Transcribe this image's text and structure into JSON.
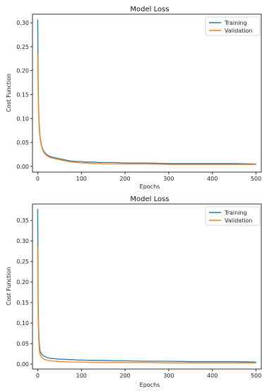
{
  "colors": {
    "training": "#1f77b4",
    "validation": "#ff7f0e",
    "axis": "#000000"
  },
  "chart_data": [
    {
      "type": "line",
      "title": "Model Loss",
      "xlabel": "Epochs",
      "ylabel": "Cost Function",
      "xlim": [
        -12,
        512
      ],
      "ylim": [
        -0.012,
        0.318
      ],
      "xticks": [
        0,
        100,
        200,
        300,
        400,
        500
      ],
      "yticks": [
        0.0,
        0.05,
        0.1,
        0.15,
        0.2,
        0.25,
        0.3
      ],
      "ytick_labels": [
        "0.00",
        "0.05",
        "0.10",
        "0.15",
        "0.20",
        "0.25",
        "0.30"
      ],
      "legend": "top-right",
      "series": [
        {
          "name": "Training",
          "x": [
            0,
            1,
            2,
            3,
            4,
            5,
            6,
            8,
            10,
            12,
            15,
            20,
            25,
            30,
            40,
            50,
            60,
            70,
            80,
            90,
            100,
            110,
            120,
            130,
            140,
            150,
            175,
            200,
            250,
            300,
            350,
            400,
            450,
            500
          ],
          "values": [
            0.307,
            0.18,
            0.12,
            0.095,
            0.078,
            0.066,
            0.057,
            0.047,
            0.04,
            0.035,
            0.03,
            0.025,
            0.022,
            0.02,
            0.018,
            0.016,
            0.014,
            0.012,
            0.011,
            0.01,
            0.01,
            0.009,
            0.009,
            0.009,
            0.008,
            0.008,
            0.008,
            0.007,
            0.007,
            0.006,
            0.006,
            0.006,
            0.006,
            0.005
          ]
        },
        {
          "name": "Validation",
          "x": [
            0,
            1,
            2,
            3,
            4,
            5,
            6,
            8,
            10,
            12,
            15,
            20,
            25,
            30,
            40,
            50,
            60,
            70,
            80,
            90,
            100,
            110,
            120,
            130,
            140,
            150,
            175,
            200,
            250,
            300,
            350,
            400,
            450,
            500
          ],
          "values": [
            0.234,
            0.16,
            0.11,
            0.088,
            0.073,
            0.062,
            0.054,
            0.045,
            0.038,
            0.033,
            0.028,
            0.023,
            0.02,
            0.018,
            0.016,
            0.014,
            0.012,
            0.01,
            0.009,
            0.008,
            0.007,
            0.007,
            0.006,
            0.006,
            0.006,
            0.005,
            0.005,
            0.005,
            0.005,
            0.004,
            0.004,
            0.004,
            0.004,
            0.004
          ]
        }
      ]
    },
    {
      "type": "line",
      "title": "Model Loss",
      "xlabel": "Epochs",
      "ylabel": "Cost Function",
      "xlim": [
        -12,
        512
      ],
      "ylim": [
        -0.012,
        0.39
      ],
      "xticks": [
        0,
        100,
        200,
        300,
        400,
        500
      ],
      "yticks": [
        0.0,
        0.05,
        0.1,
        0.15,
        0.2,
        0.25,
        0.3,
        0.35
      ],
      "ytick_labels": [
        "0.00",
        "0.05",
        "0.10",
        "0.15",
        "0.20",
        "0.25",
        "0.30",
        "0.35"
      ],
      "legend": "top-right",
      "series": [
        {
          "name": "Training",
          "x": [
            0,
            1,
            2,
            3,
            4,
            5,
            6,
            8,
            10,
            12,
            15,
            20,
            25,
            30,
            40,
            50,
            60,
            70,
            80,
            90,
            100,
            125,
            150,
            175,
            200,
            250,
            300,
            350,
            400,
            450,
            500
          ],
          "values": [
            0.378,
            0.16,
            0.09,
            0.06,
            0.045,
            0.035,
            0.03,
            0.026,
            0.023,
            0.021,
            0.019,
            0.017,
            0.015,
            0.014,
            0.013,
            0.012,
            0.012,
            0.011,
            0.011,
            0.01,
            0.01,
            0.009,
            0.009,
            0.008,
            0.008,
            0.007,
            0.007,
            0.006,
            0.006,
            0.006,
            0.005
          ]
        },
        {
          "name": "Validation",
          "x": [
            0,
            1,
            2,
            3,
            4,
            5,
            6,
            8,
            10,
            12,
            15,
            20,
            25,
            30,
            40,
            50,
            60,
            70,
            80,
            90,
            100,
            125,
            150,
            175,
            200,
            250,
            300,
            350,
            400,
            450,
            500
          ],
          "values": [
            0.285,
            0.12,
            0.07,
            0.045,
            0.033,
            0.026,
            0.022,
            0.018,
            0.016,
            0.014,
            0.012,
            0.01,
            0.009,
            0.008,
            0.007,
            0.006,
            0.006,
            0.005,
            0.005,
            0.005,
            0.005,
            0.004,
            0.004,
            0.004,
            0.004,
            0.004,
            0.003,
            0.003,
            0.003,
            0.003,
            0.003
          ]
        }
      ]
    }
  ]
}
